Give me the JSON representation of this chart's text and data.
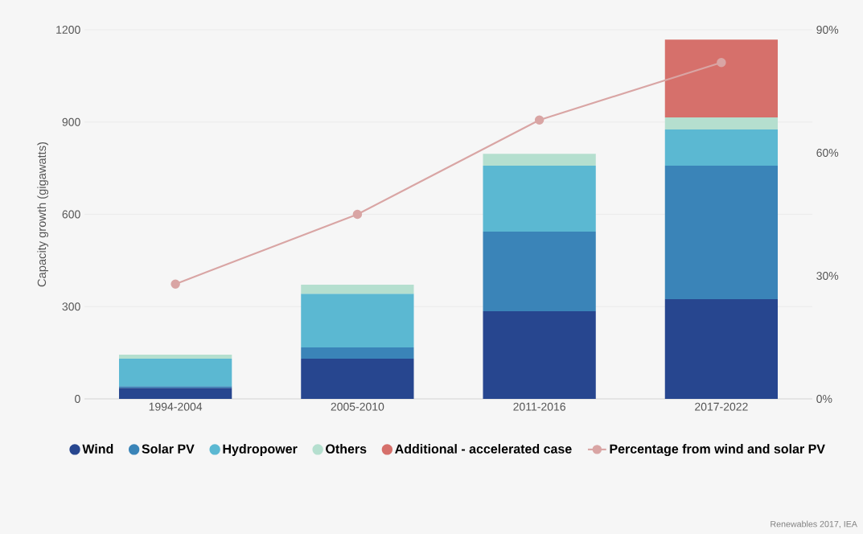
{
  "chart_data": {
    "type": "bar",
    "stacked": true,
    "ylabel": "Capacity growth (gigawatts)",
    "categories": [
      "1994-2004",
      "2005-2010",
      "2011-2016",
      "2017-2022"
    ],
    "ylim": [
      0,
      1200
    ],
    "yticks": [
      0,
      300,
      600,
      900,
      1200
    ],
    "y2lim": [
      0,
      90
    ],
    "y2ticks": [
      {
        "value": 0,
        "label": "0%"
      },
      {
        "value": 30,
        "label": "30%"
      },
      {
        "value": 60,
        "label": "60%"
      },
      {
        "value": 90,
        "label": "90%"
      }
    ],
    "grid": "y",
    "legend": "bottom",
    "annotations": [
      "Renewables 2017, IEA"
    ],
    "series": [
      {
        "name": "Wind",
        "color": "#27468f",
        "values": [
          36,
          131,
          285,
          324
        ]
      },
      {
        "name": "Solar PV",
        "color": "#3a84b8",
        "values": [
          5,
          36,
          259,
          434
        ]
      },
      {
        "name": "Hydropower",
        "color": "#5bb8d2",
        "values": [
          90,
          175,
          214,
          118
        ]
      },
      {
        "name": "Others",
        "color": "#b5dfcf",
        "values": [
          13,
          29,
          39,
          39
        ]
      },
      {
        "name": "Additional - accelerated case",
        "color": "#d6706b",
        "values": [
          null,
          null,
          null,
          253
        ]
      },
      {
        "name": "Percentage from wind and solar PV",
        "type": "line",
        "axis": "y2",
        "marker": "circle",
        "color": "#d9a5a4",
        "values": [
          28,
          45,
          68,
          82
        ]
      }
    ]
  }
}
